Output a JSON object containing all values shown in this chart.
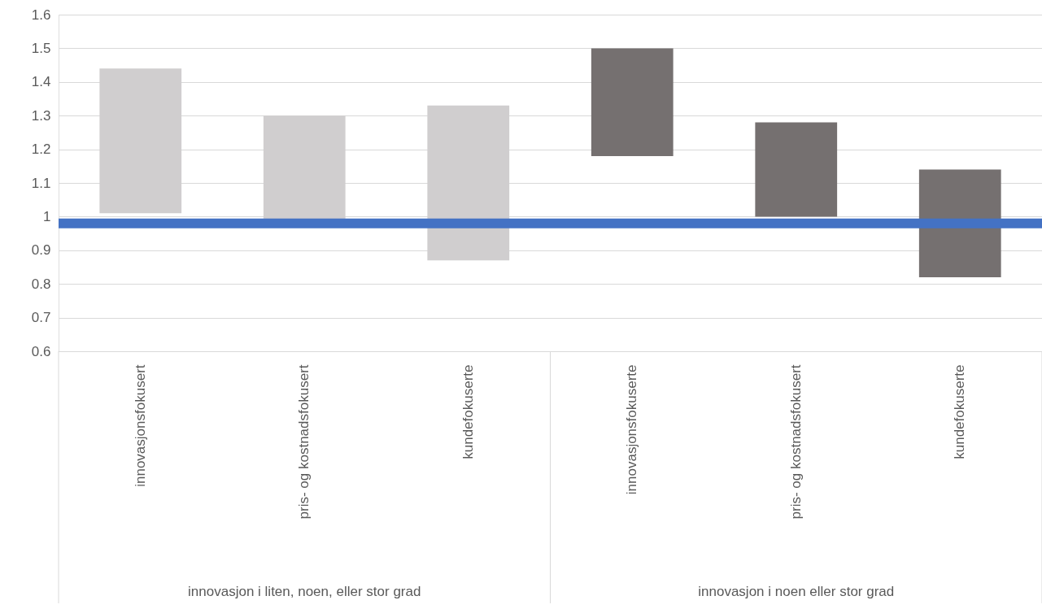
{
  "chart_data": {
    "type": "bar",
    "categories": [
      "innovasjonsfokusert",
      "pris- og kostnadsfokusert",
      "kundefokuserte",
      "innovasjonsfokuserte",
      "pris- og kostnadsfokusert",
      "kundefokuserte"
    ],
    "base": [
      1.01,
      0.98,
      0.87,
      1.18,
      1.0,
      0.82
    ],
    "values": [
      0.43,
      0.32,
      0.46,
      0.32,
      0.28,
      0.32
    ],
    "colors": [
      "#d0cecf",
      "#d0cecf",
      "#d0cecf",
      "#757070",
      "#757070",
      "#757070"
    ],
    "ylim": [
      0.6,
      1.6
    ],
    "yticks": [
      0.6,
      0.7,
      0.8,
      0.9,
      1,
      1.1,
      1.2,
      1.3,
      1.4,
      1.5,
      1.6
    ],
    "ref_lines": [
      {
        "axis": "y",
        "value": 0.98,
        "color": "#4472c4"
      }
    ],
    "annotations": [
      "innovasjon i liten, noen, eller stor grad",
      "innovasjon i noen eller stor grad"
    ],
    "grid": "y"
  }
}
